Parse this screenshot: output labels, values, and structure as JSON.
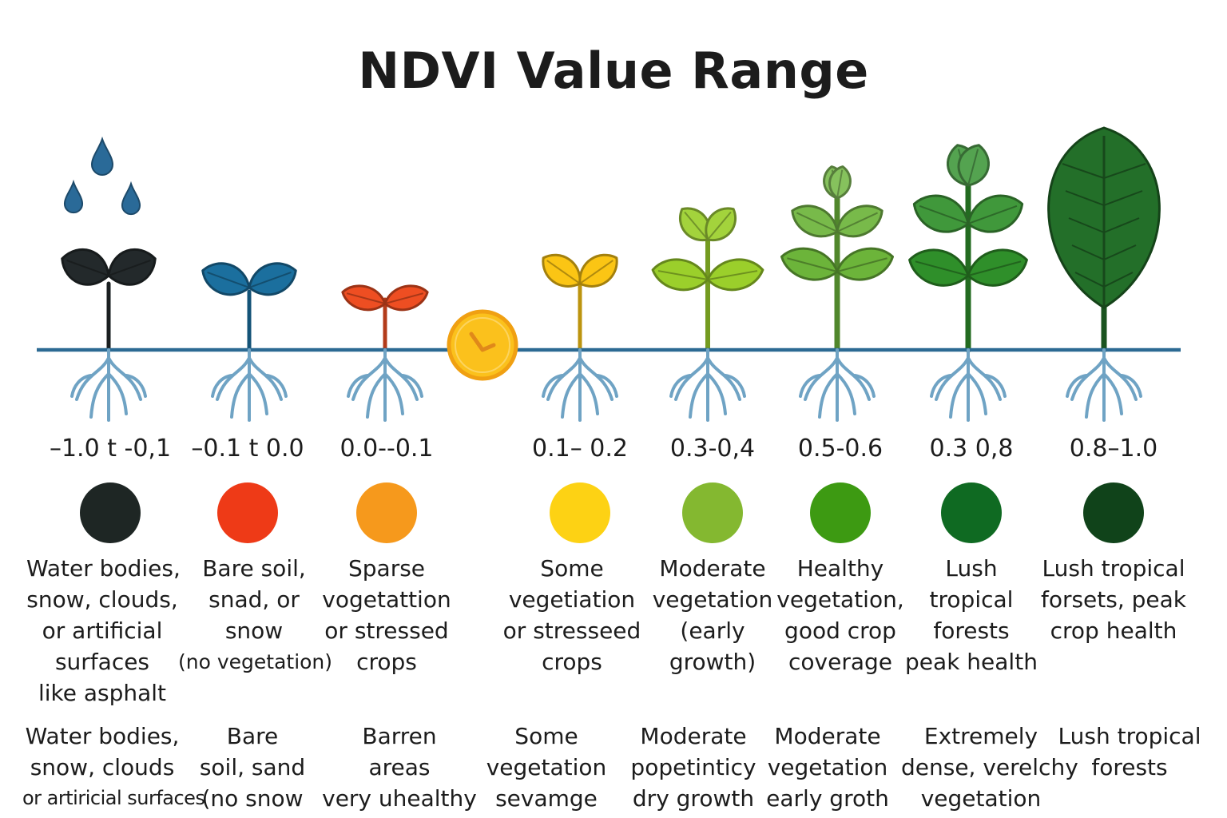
{
  "title": "NDVI Value Range",
  "columns": [
    {
      "range": "–1.0 t -0,1",
      "color": "#1e2624",
      "plant_color": "#23292b",
      "description": [
        "Water bodies,",
        "snow, clouds,",
        "or artificial",
        "surfaces",
        "like asphalt"
      ],
      "description2": [
        "Water bodies,",
        "snow, clouds",
        "or artiricial surfaces"
      ]
    },
    {
      "range": "–0.1 t 0.0",
      "color": "#ee3a17",
      "plant_color": "#1b6f9e",
      "description": [
        "Bare soil,",
        "snad, or",
        "snow",
        "(no vegetation)"
      ],
      "description2": [
        "Bare",
        "soil, sand",
        "(no snow"
      ]
    },
    {
      "range": "0.0--0.1",
      "color": "#f6991c",
      "plant_color": "#ee4e22",
      "description": [
        "Sparse",
        "vogetattion",
        "or stressed",
        "crops"
      ],
      "description2": [
        "Barren",
        "areas",
        "very uhealthy"
      ]
    },
    {
      "range": "0.1– 0.2",
      "color": "#fdd214",
      "plant_color": "#fbc514",
      "description": [
        "Some",
        "vegetiation",
        "or stresseed",
        "crops"
      ],
      "description2": [
        "Some",
        "vegetation",
        "sevamge"
      ]
    },
    {
      "range": "0.3-0,4",
      "color": "#84b830",
      "plant_color": "#9bcf2b",
      "description": [
        "Moderate",
        "vegetation",
        "(early",
        "growth)"
      ],
      "description2": [
        "Moderate",
        "popetinticy",
        "dry growth"
      ]
    },
    {
      "range": "0.5-0.6",
      "color": "#3d9a12",
      "plant_color": "#6cb43a",
      "description": [
        "Healthy",
        "vegetation,",
        "good crop",
        "coverage"
      ],
      "description2": [
        "Moderate",
        "vegetation",
        "early groth"
      ]
    },
    {
      "range": "0.3 0,8",
      "color": "#0f6a22",
      "plant_color": "#2f8f2a",
      "description": [
        "Lush",
        "tropical",
        "forests",
        "peak health"
      ],
      "description2": [
        "Extremely",
        "dense, verelchy",
        "vegetation"
      ]
    },
    {
      "range": "0.8–1.0",
      "color": "#10431a",
      "plant_color": "#236f29",
      "description": [
        "Lush tropical",
        "forsets, peak",
        "crop health"
      ],
      "description2": [
        "Lush tropical",
        "forests"
      ]
    }
  ],
  "colors": {
    "ground_line": "#2c6a93",
    "roots": "#6fa3c4",
    "water_drop": "#2a6a98",
    "marker_fill": "#fbc11c",
    "marker_stroke": "#f0a012"
  },
  "icons": {
    "water_drops": "water-drop-icon",
    "marker": "down-arrow-circle-icon"
  }
}
